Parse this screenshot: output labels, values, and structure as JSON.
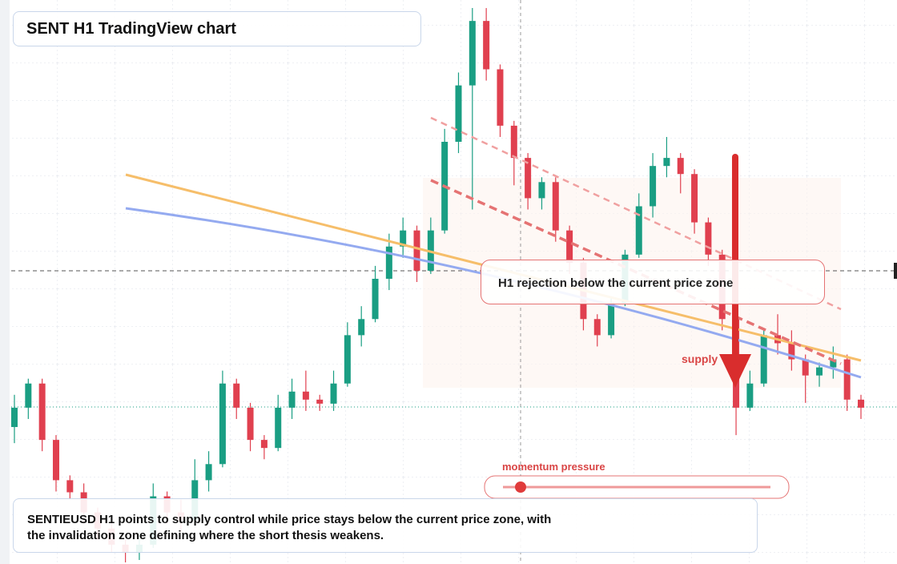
{
  "header": {
    "title": "SENT H1 TradingView chart"
  },
  "chart_data": {
    "type": "candlestick",
    "ylim": [
      0,
      70
    ],
    "candles": [
      [
        17,
        21,
        15,
        19.4
      ],
      [
        19.4,
        23,
        18,
        22.4
      ],
      [
        22.4,
        23,
        14,
        15.4
      ],
      [
        15.4,
        16,
        9,
        10.4
      ],
      [
        10.4,
        11,
        8,
        8.9
      ],
      [
        8.9,
        10,
        5,
        6.4
      ],
      [
        6.4,
        7,
        3,
        4.4
      ],
      [
        4.4,
        6,
        1.5,
        2.4
      ],
      [
        2.4,
        3,
        0.2,
        1.4
      ],
      [
        1.4,
        4,
        0.5,
        2.4
      ],
      [
        2.4,
        10,
        2,
        8.4
      ],
      [
        8.4,
        9,
        5,
        6.4
      ],
      [
        6.4,
        8,
        4,
        5.4
      ],
      [
        5.4,
        13,
        5,
        10.4
      ],
      [
        10.4,
        14,
        9,
        12.4
      ],
      [
        12.4,
        24,
        12,
        22.4
      ],
      [
        22.4,
        23,
        18,
        19.4
      ],
      [
        19.4,
        20,
        14,
        15.4
      ],
      [
        15.4,
        16,
        13,
        14.4
      ],
      [
        14.4,
        21,
        14,
        19.4
      ],
      [
        19.4,
        23,
        18,
        21.4
      ],
      [
        21.4,
        24,
        19,
        20.4
      ],
      [
        20.4,
        21,
        19,
        19.9
      ],
      [
        19.9,
        24,
        19,
        22.4
      ],
      [
        22.4,
        30,
        22,
        28.4
      ],
      [
        28.4,
        32,
        27,
        30.4
      ],
      [
        30.4,
        37,
        30,
        35.4
      ],
      [
        35.4,
        41,
        34,
        39.4
      ],
      [
        39.4,
        43,
        38,
        41.4
      ],
      [
        41.4,
        42,
        35,
        36.4
      ],
      [
        36.4,
        43,
        36,
        41.4
      ],
      [
        41.4,
        54,
        41,
        52.4
      ],
      [
        52.4,
        61,
        51,
        59.4
      ],
      [
        59.4,
        69,
        44,
        67.4
      ],
      [
        67.4,
        69,
        60,
        61.4
      ],
      [
        61.4,
        62,
        53,
        54.4
      ],
      [
        54.4,
        55,
        47,
        50.4
      ],
      [
        50.4,
        51,
        44,
        45.4
      ],
      [
        45.4,
        48,
        44,
        47.4
      ],
      [
        47.4,
        48,
        40,
        41.4
      ],
      [
        41.4,
        42,
        36,
        37.4
      ],
      [
        37.4,
        38,
        29,
        30.4
      ],
      [
        30.4,
        31,
        27,
        28.4
      ],
      [
        28.4,
        33,
        28,
        32.4
      ],
      [
        32.4,
        39,
        32,
        38.4
      ],
      [
        38.4,
        46,
        38,
        44.4
      ],
      [
        44.4,
        51,
        43,
        49.4
      ],
      [
        49.4,
        53,
        48,
        50.4
      ],
      [
        50.4,
        51,
        46,
        48.4
      ],
      [
        48.4,
        49,
        41,
        42.4
      ],
      [
        42.4,
        43,
        37,
        38.4
      ],
      [
        38.4,
        39,
        29,
        30.4
      ],
      [
        30.4,
        31,
        16,
        19.4
      ],
      [
        19.4,
        24,
        19,
        22.4
      ],
      [
        22.4,
        29,
        22,
        28.4
      ],
      [
        28.4,
        31,
        26,
        27.4
      ],
      [
        27.4,
        29,
        24,
        25.4
      ],
      [
        25.4,
        26,
        20,
        23.4
      ],
      [
        23.4,
        25,
        22,
        24.4
      ],
      [
        24.4,
        27,
        23,
        25.4
      ],
      [
        25.4,
        26,
        19,
        20.4
      ],
      [
        20.4,
        21,
        18,
        19.4
      ]
    ]
  },
  "annotations": {
    "callout": "H1 rejection below the current price zone",
    "supply": "supply",
    "momentum": "momentum pressure"
  },
  "summary": {
    "lines": [
      "SENTIEUSD H1 points to supply control while price stays below the current price zone, with",
      "the invalidation zone defining where the short thesis weakens."
    ]
  }
}
